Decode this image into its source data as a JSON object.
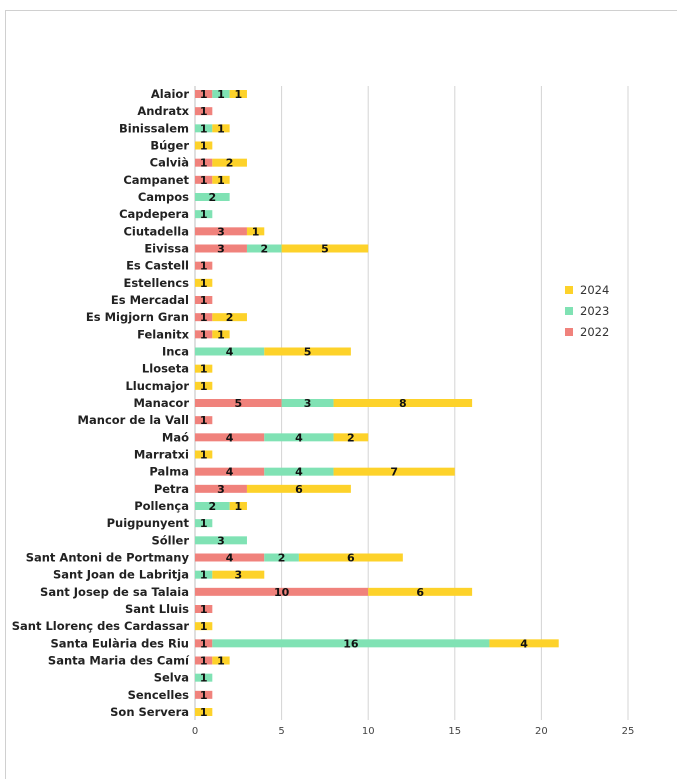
{
  "chart_data": {
    "type": "bar",
    "orientation": "horizontal",
    "stacked": true,
    "categories": [
      "Alaior",
      "Andratx",
      "Binissalem",
      "Búger",
      "Calvià",
      "Campanet",
      "Campos",
      "Capdepera",
      "Ciutadella",
      "Eivissa",
      "Es Castell",
      "Estellencs",
      "Es Mercadal",
      "Es Migjorn Gran",
      "Felanitx",
      "Inca",
      "Lloseta",
      "Llucmajor",
      "Manacor",
      "Mancor de la Vall",
      "Maó",
      "Marratxi",
      "Palma",
      "Petra",
      "Pollença",
      "Puigpunyent",
      "Sóller",
      "Sant Antoni de Portmany",
      "Sant Joan de Labritja",
      "Sant Josep de sa Talaia",
      "Sant Lluis",
      "Sant Llorenç des Cardassar",
      "Santa Eulària des Riu",
      "Santa Maria des Camí",
      "Selva",
      "Sencelles",
      "Son Servera"
    ],
    "series": [
      {
        "name": "2022",
        "color": "#f0827c",
        "values": [
          1,
          1,
          0,
          0,
          1,
          1,
          0,
          0,
          3,
          3,
          1,
          0,
          1,
          1,
          1,
          0,
          0,
          0,
          5,
          1,
          4,
          0,
          4,
          3,
          0,
          0,
          0,
          4,
          0,
          10,
          1,
          0,
          1,
          1,
          0,
          1,
          0
        ]
      },
      {
        "name": "2023",
        "color": "#80e2b4",
        "values": [
          1,
          0,
          1,
          0,
          0,
          0,
          2,
          1,
          0,
          2,
          0,
          0,
          0,
          0,
          0,
          4,
          0,
          0,
          3,
          0,
          4,
          0,
          4,
          0,
          2,
          1,
          3,
          2,
          1,
          0,
          0,
          0,
          16,
          0,
          1,
          0,
          0
        ]
      },
      {
        "name": "2024",
        "color": "#fdd22a",
        "values": [
          1,
          0,
          1,
          1,
          2,
          1,
          0,
          0,
          1,
          5,
          0,
          1,
          0,
          2,
          1,
          5,
          1,
          1,
          8,
          0,
          2,
          1,
          7,
          6,
          1,
          0,
          0,
          6,
          3,
          6,
          0,
          1,
          4,
          1,
          0,
          0,
          1
        ]
      }
    ],
    "xlim": [
      0,
      25
    ],
    "xticks": [
      "0",
      "5",
      "10",
      "15",
      "20",
      "25"
    ],
    "grid": true,
    "legend_position": "right",
    "legend_order": [
      "2024",
      "2023",
      "2022"
    ]
  }
}
